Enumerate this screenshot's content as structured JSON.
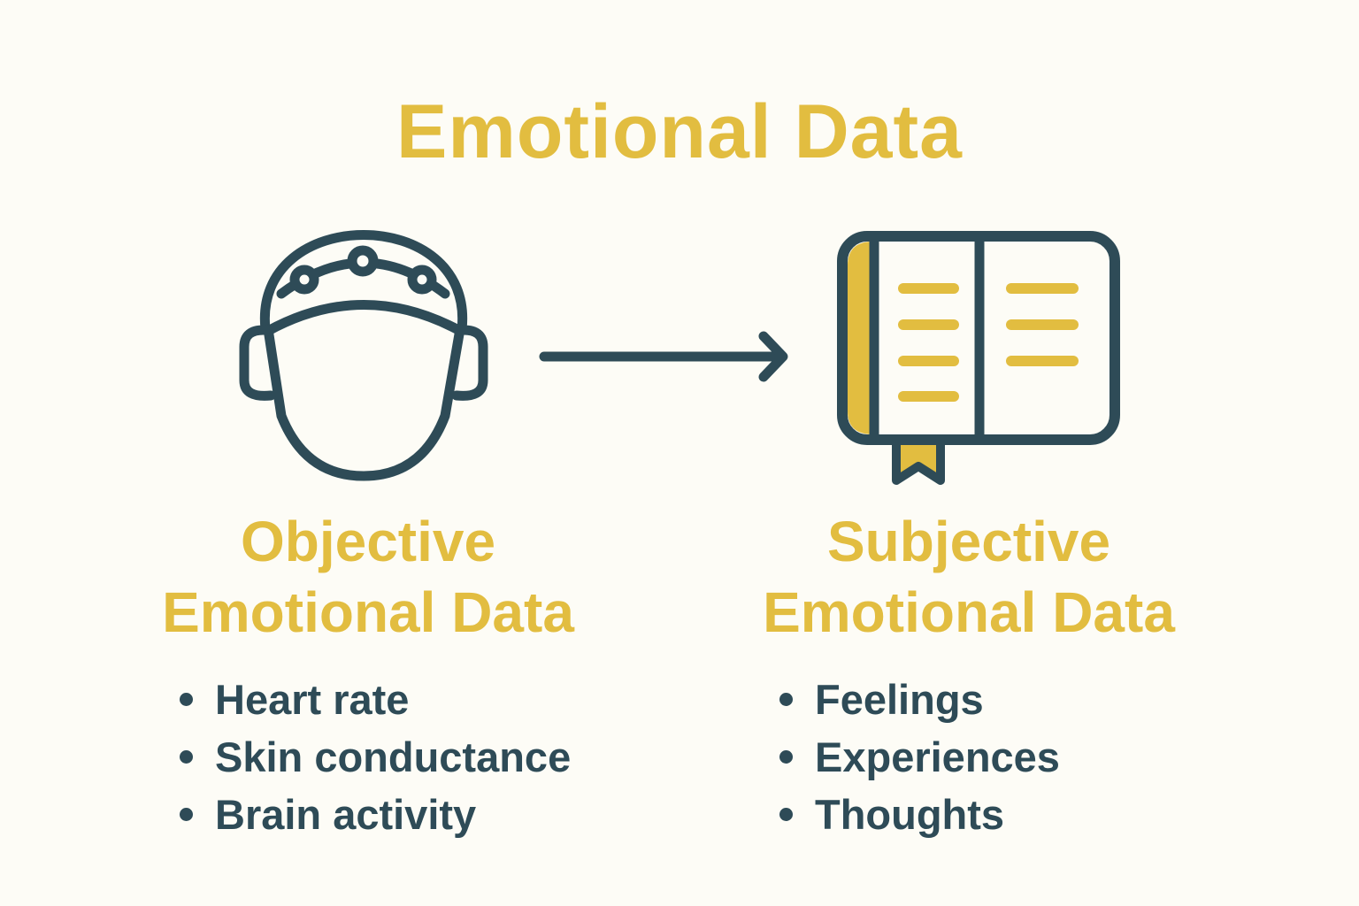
{
  "title": "Emotional Data",
  "colors": {
    "accent": "#E2BD40",
    "dark": "#2E4B57",
    "background": "#FDFCF6"
  },
  "left": {
    "icon": "head-with-eeg-sensors-icon",
    "heading_line1": "Objective",
    "heading_line2": "Emotional Data",
    "items": [
      "Heart rate",
      "Skin conductance",
      "Brain activity"
    ]
  },
  "arrow": "arrow-right-icon",
  "right": {
    "icon": "journal-book-icon",
    "heading_line1": "Subjective",
    "heading_line2": "Emotional Data",
    "items": [
      "Feelings",
      "Experiences",
      "Thoughts"
    ]
  }
}
